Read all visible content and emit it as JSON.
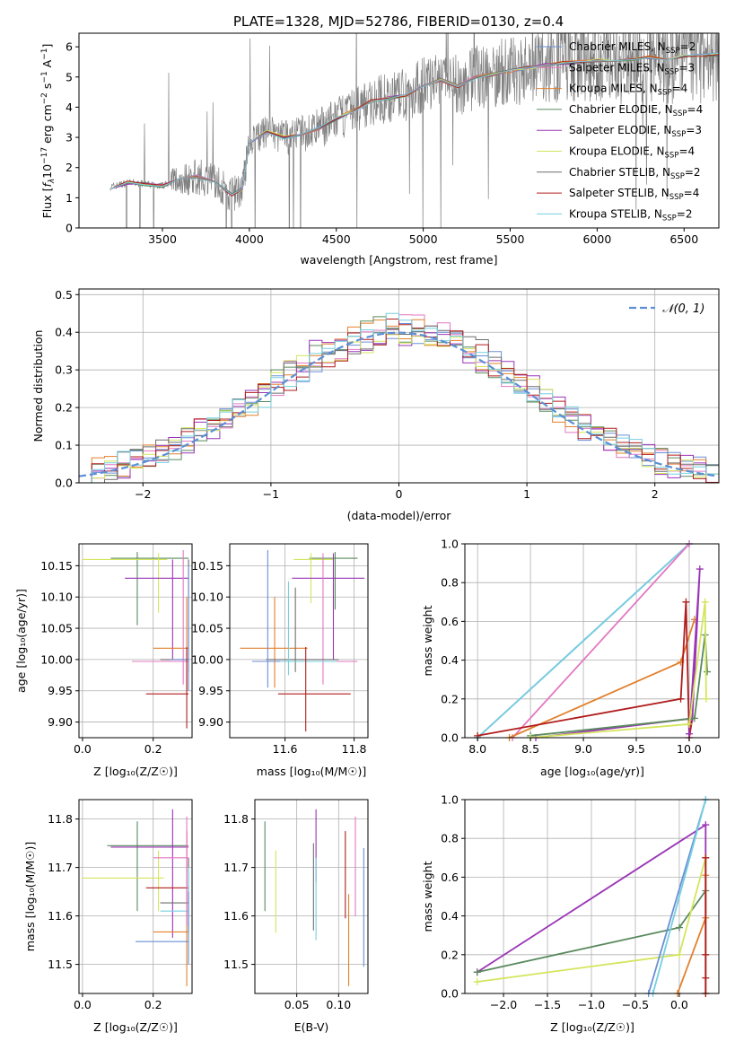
{
  "figure_title": "PLATE=1328, MJD=52786, FIBERID=0130, z=0.4",
  "colors": {
    "chabrier_miles": "#6a8fd6",
    "salpeter_miles": "#e377c2",
    "kroupa_miles": "#e2802d",
    "chabrier_elodie": "#5a8a5e",
    "salpeter_elodie": "#9a35b5",
    "kroupa_elodie": "#d4e55c",
    "chabrier_stelib": "#6e6e6e",
    "salpeter_stelib": "#b01c1c",
    "kroupa_stelib": "#76cfe0",
    "spectrum": "#808080",
    "normal_curve": "#5b8fd6"
  },
  "chart_data": [
    {
      "id": "spectrum",
      "type": "line",
      "xlabel": "wavelength [Angstrom, rest frame]",
      "ylabel": "Flux [f_λ10^-17 erg cm^-2 s^-1 A^-1]",
      "xlim": [
        3020,
        6700
      ],
      "ylim": [
        0,
        6.45
      ],
      "xticks": [
        3500,
        4000,
        4500,
        5000,
        5500,
        6000,
        6500
      ],
      "yticks": [
        0,
        1,
        2,
        3,
        4,
        5,
        6
      ],
      "grid": false,
      "legend_position": "top-right",
      "legend": [
        {
          "base": "Chabrier MILES, N",
          "sub": "SSP",
          "tail": "=2",
          "color_key": "chabrier_miles"
        },
        {
          "base": "Salpeter MILES, N",
          "sub": "SSP",
          "tail": "=3",
          "color_key": "salpeter_miles"
        },
        {
          "base": "Kroupa MILES, N",
          "sub": "SSP",
          "tail": "=4",
          "color_key": "kroupa_miles"
        },
        {
          "base": "Chabrier ELODIE, N",
          "sub": "SSP",
          "tail": "=4",
          "color_key": "chabrier_elodie"
        },
        {
          "base": "Salpeter ELODIE, N",
          "sub": "SSP",
          "tail": "=3",
          "color_key": "salpeter_elodie"
        },
        {
          "base": "Kroupa ELODIE, N",
          "sub": "SSP",
          "tail": "=4",
          "color_key": "kroupa_elodie"
        },
        {
          "base": "Chabrier STELIB, N",
          "sub": "SSP",
          "tail": "=2",
          "color_key": "chabrier_stelib"
        },
        {
          "base": "Salpeter STELIB, N",
          "sub": "SSP",
          "tail": "=4",
          "color_key": "salpeter_stelib"
        },
        {
          "base": "Kroupa STELIB, N",
          "sub": "SSP",
          "tail": "=2",
          "color_key": "kroupa_stelib"
        }
      ],
      "model_continuum": [
        [
          3200,
          1.35
        ],
        [
          3300,
          1.5
        ],
        [
          3400,
          1.45
        ],
        [
          3500,
          1.4
        ],
        [
          3600,
          1.6
        ],
        [
          3700,
          1.7
        ],
        [
          3800,
          1.55
        ],
        [
          3900,
          1.1
        ],
        [
          3960,
          1.3
        ],
        [
          4000,
          2.8
        ],
        [
          4100,
          3.2
        ],
        [
          4200,
          3.0
        ],
        [
          4300,
          3.1
        ],
        [
          4400,
          3.3
        ],
        [
          4500,
          3.6
        ],
        [
          4600,
          3.9
        ],
        [
          4700,
          4.2
        ],
        [
          4800,
          4.3
        ],
        [
          4900,
          4.4
        ],
        [
          5000,
          4.7
        ],
        [
          5100,
          4.9
        ],
        [
          5200,
          4.7
        ],
        [
          5300,
          5.0
        ],
        [
          5400,
          5.1
        ],
        [
          5500,
          5.2
        ],
        [
          5600,
          5.3
        ],
        [
          5700,
          5.4
        ],
        [
          5800,
          5.45
        ],
        [
          5900,
          5.5
        ],
        [
          6000,
          5.55
        ],
        [
          6100,
          5.5
        ],
        [
          6200,
          5.6
        ],
        [
          6300,
          5.65
        ],
        [
          6400,
          5.6
        ],
        [
          6500,
          5.7
        ],
        [
          6600,
          5.7
        ],
        [
          6700,
          5.75
        ]
      ]
    },
    {
      "id": "residuals",
      "type": "histogram",
      "xlabel": "(data-model)/error",
      "ylabel": "Normed distribution",
      "xlim": [
        -2.5,
        2.5
      ],
      "ylim": [
        0,
        0.515
      ],
      "xticks": [
        -2,
        -1,
        0,
        1,
        2
      ],
      "yticks": [
        0.0,
        0.1,
        0.2,
        0.3,
        0.4,
        0.5
      ],
      "grid": true,
      "legend_position": "top-right",
      "legend_label": "𝒩(0, 1)"
    },
    {
      "id": "age_vs_Z",
      "type": "errorbar",
      "xlabel": "Z [log₁₀(Z/Z☉)]",
      "ylabel": "age [log₁₀(age/yr)]",
      "xlim": [
        -0.01,
        0.31
      ],
      "ylim": [
        9.875,
        10.185
      ],
      "xticks": [
        0.0,
        0.2
      ],
      "yticks": [
        9.9,
        9.95,
        10.0,
        10.05,
        10.1,
        10.15
      ],
      "grid": true,
      "points": [
        {
          "color_key": "chabrier_elodie",
          "x": 0.155,
          "xerr": [
            0.08,
            0.3
          ],
          "y": 10.162,
          "yerr": [
            10.055,
            10.172
          ]
        },
        {
          "color_key": "kroupa_elodie",
          "x": 0.215,
          "xerr": [
            0.0,
            0.24
          ],
          "y": 10.16,
          "yerr": [
            10.075,
            10.17
          ]
        },
        {
          "color_key": "salpeter_elodie",
          "x": 0.255,
          "xerr": [
            0.12,
            0.3
          ],
          "y": 10.13,
          "yerr": [
            10.0,
            10.16
          ]
        },
        {
          "color_key": "kroupa_miles",
          "x": 0.295,
          "xerr": [
            0.2,
            0.3
          ],
          "y": 10.018,
          "yerr": [
            9.95,
            10.1
          ]
        },
        {
          "color_key": "salpeter_miles",
          "x": 0.285,
          "xerr": [
            0.14,
            0.3
          ],
          "y": 9.997,
          "yerr": [
            9.96,
            10.175
          ]
        },
        {
          "color_key": "chabrier_stelib",
          "x": 0.3,
          "xerr": [
            0.22,
            0.3
          ],
          "y": 10.0,
          "yerr": [
            9.98,
            10.16
          ]
        },
        {
          "color_key": "chabrier_miles",
          "x": 0.3,
          "xerr": [
            0.25,
            0.3
          ],
          "y": 10.0,
          "yerr": [
            9.95,
            10.15
          ]
        },
        {
          "color_key": "salpeter_stelib",
          "x": 0.295,
          "xerr": [
            0.18,
            0.3
          ],
          "y": 9.945,
          "yerr": [
            9.89,
            10.02
          ]
        }
      ]
    },
    {
      "id": "age_vs_mass",
      "type": "errorbar",
      "xlabel": "mass [log₁₀(M/M☉)]",
      "ylabel": "",
      "xlim": [
        11.44,
        11.84
      ],
      "ylim": [
        9.875,
        10.185
      ],
      "xticks": [
        11.6,
        11.8
      ],
      "yticks": [
        9.9,
        9.95,
        10.0,
        10.05,
        10.1,
        10.15
      ],
      "grid": true,
      "points": [
        {
          "color_key": "chabrier_elodie",
          "x": 11.745,
          "xerr": [
            11.67,
            11.81
          ],
          "y": 10.162,
          "yerr": [
            10.08,
            10.172
          ]
        },
        {
          "color_key": "kroupa_elodie",
          "x": 11.675,
          "xerr": [
            11.625,
            11.74
          ],
          "y": 10.16,
          "yerr": [
            10.09,
            10.17
          ]
        },
        {
          "color_key": "salpeter_elodie",
          "x": 11.74,
          "xerr": [
            11.62,
            11.83
          ],
          "y": 10.13,
          "yerr": [
            10.0,
            10.17
          ]
        },
        {
          "color_key": "kroupa_miles",
          "x": 11.57,
          "xerr": [
            11.47,
            11.665
          ],
          "y": 10.018,
          "yerr": [
            9.955,
            10.1
          ]
        },
        {
          "color_key": "salpeter_miles",
          "x": 11.71,
          "xerr": [
            11.59,
            11.81
          ],
          "y": 9.997,
          "yerr": [
            9.96,
            10.17
          ]
        },
        {
          "color_key": "chabrier_stelib",
          "x": 11.63,
          "xerr": [
            11.545,
            11.755
          ],
          "y": 10.0,
          "yerr": [
            9.98,
            10.115
          ]
        },
        {
          "color_key": "chabrier_miles",
          "x": 11.55,
          "xerr": [
            11.505,
            11.73
          ],
          "y": 9.997,
          "yerr": [
            9.955,
            10.175
          ]
        },
        {
          "color_key": "kroupa_stelib",
          "x": 11.61,
          "xerr": [
            11.585,
            11.75
          ],
          "y": 9.997,
          "yerr": [
            9.975,
            10.125
          ]
        },
        {
          "color_key": "salpeter_stelib",
          "x": 11.66,
          "xerr": [
            11.58,
            11.79
          ],
          "y": 9.945,
          "yerr": [
            9.885,
            10.02
          ]
        }
      ]
    },
    {
      "id": "mass_weight_vs_age",
      "type": "line",
      "xlabel": "age [log₁₀(age/yr)]",
      "ylabel": "mass weight",
      "xlim": [
        7.88,
        10.28
      ],
      "ylim": [
        0,
        1.0
      ],
      "xticks": [
        8.0,
        8.5,
        9.0,
        9.5,
        10.0
      ],
      "yticks": [
        0.0,
        0.2,
        0.4,
        0.6,
        0.8,
        1.0
      ],
      "grid": true,
      "series": [
        {
          "color_key": "chabrier_miles",
          "x": [
            8.0,
            10.0
          ],
          "y": [
            0.0,
            1.0
          ]
        },
        {
          "color_key": "kroupa_stelib",
          "x": [
            8.0,
            10.0
          ],
          "y": [
            0.0,
            1.0
          ]
        },
        {
          "color_key": "salpeter_miles",
          "x": [
            8.33,
            10.0
          ],
          "y": [
            0.0,
            1.0
          ]
        },
        {
          "color_key": "kroupa_miles",
          "x": [
            8.3,
            9.92,
            10.05
          ],
          "y": [
            0.0,
            0.39,
            0.61
          ]
        },
        {
          "color_key": "salpeter_stelib",
          "x": [
            8.0,
            9.92,
            9.97,
            10.0,
            10.03
          ],
          "y": [
            0.01,
            0.2,
            0.7,
            0.0,
            0.1
          ]
        },
        {
          "color_key": "salpeter_elodie",
          "x": [
            8.55,
            10.03,
            10.1,
            10.0
          ],
          "y": [
            0.0,
            0.1,
            0.87,
            0.02
          ]
        },
        {
          "color_key": "chabrier_elodie",
          "x": [
            8.5,
            10.05,
            10.15,
            10.17
          ],
          "y": [
            0.01,
            0.1,
            0.53,
            0.34
          ]
        },
        {
          "color_key": "kroupa_elodie",
          "x": [
            8.5,
            10.0,
            10.15,
            10.16
          ],
          "y": [
            0.0,
            0.07,
            0.7,
            0.2
          ]
        }
      ]
    },
    {
      "id": "mass_vs_Z",
      "type": "errorbar",
      "xlabel": "Z [log₁₀(Z/Z☉)]",
      "ylabel": "mass [log₁₀(M/M☉)]",
      "xlim": [
        -0.01,
        0.31
      ],
      "ylim": [
        11.44,
        11.84
      ],
      "xticks": [
        0.0,
        0.2
      ],
      "yticks": [
        11.5,
        11.6,
        11.7,
        11.8
      ],
      "grid": true,
      "points": [
        {
          "color_key": "chabrier_elodie",
          "x": 0.155,
          "xerr": [
            0.07,
            0.3
          ],
          "y": 11.745,
          "yerr": [
            11.61,
            11.795
          ]
        },
        {
          "color_key": "salpeter_elodie",
          "x": 0.255,
          "xerr": [
            0.08,
            0.3
          ],
          "y": 11.742,
          "yerr": [
            11.555,
            11.82
          ]
        },
        {
          "color_key": "kroupa_elodie",
          "x": 0.215,
          "xerr": [
            0.0,
            0.23
          ],
          "y": 11.678,
          "yerr": [
            11.61,
            11.735
          ]
        },
        {
          "color_key": "salpeter_stelib",
          "x": 0.295,
          "xerr": [
            0.18,
            0.3
          ],
          "y": 11.658,
          "yerr": [
            11.58,
            11.775
          ]
        },
        {
          "color_key": "chabrier_stelib",
          "x": 0.3,
          "xerr": [
            0.22,
            0.3
          ],
          "y": 11.627,
          "yerr": [
            11.57,
            11.72
          ]
        },
        {
          "color_key": "kroupa_stelib",
          "x": 0.3,
          "xerr": [
            0.22,
            0.3
          ],
          "y": 11.61,
          "yerr": [
            11.56,
            11.7
          ]
        },
        {
          "color_key": "kroupa_miles",
          "x": 0.295,
          "xerr": [
            0.2,
            0.3
          ],
          "y": 11.567,
          "yerr": [
            11.455,
            11.645
          ]
        },
        {
          "color_key": "chabrier_miles",
          "x": 0.3,
          "xerr": [
            0.15,
            0.3
          ],
          "y": 11.547,
          "yerr": [
            11.5,
            11.65
          ]
        },
        {
          "color_key": "salpeter_miles",
          "x": 0.295,
          "xerr": [
            0.2,
            0.3
          ],
          "y": 11.72,
          "yerr": [
            11.58,
            11.805
          ]
        }
      ]
    },
    {
      "id": "mass_vs_EBV",
      "type": "errorbar",
      "xlabel": "E(B-V)",
      "ylabel": "",
      "xlim": [
        0.0,
        0.135
      ],
      "ylim": [
        11.44,
        11.84
      ],
      "xticks": [
        0.05,
        0.1
      ],
      "yticks": [
        11.5,
        11.6,
        11.7,
        11.8
      ],
      "grid": true,
      "points": [
        {
          "color_key": "chabrier_elodie",
          "x": 0.012,
          "yerr": [
            11.61,
            11.795
          ]
        },
        {
          "color_key": "kroupa_elodie",
          "x": 0.025,
          "yerr": [
            11.565,
            11.735
          ]
        },
        {
          "color_key": "chabrier_stelib",
          "x": 0.07,
          "yerr": [
            11.57,
            11.75
          ]
        },
        {
          "color_key": "salpeter_elodie",
          "x": 0.073,
          "yerr": [
            11.67,
            11.82
          ]
        },
        {
          "color_key": "kroupa_stelib",
          "x": 0.073,
          "yerr": [
            11.55,
            11.72
          ]
        },
        {
          "color_key": "salpeter_stelib",
          "x": 0.108,
          "yerr": [
            11.595,
            11.775
          ]
        },
        {
          "color_key": "kroupa_miles",
          "x": 0.112,
          "yerr": [
            11.455,
            11.645
          ]
        },
        {
          "color_key": "salpeter_miles",
          "x": 0.12,
          "yerr": [
            11.6,
            11.805
          ]
        },
        {
          "color_key": "chabrier_miles",
          "x": 0.13,
          "yerr": [
            11.495,
            11.74
          ]
        }
      ]
    },
    {
      "id": "mass_weight_vs_Z",
      "type": "line",
      "xlabel": "Z [log₁₀(Z/Z☉)]",
      "ylabel": "mass weight",
      "xlim": [
        -2.44,
        0.45
      ],
      "ylim": [
        0,
        1.0
      ],
      "xticks": [
        -2.0,
        -1.5,
        -1.0,
        -0.5,
        0.0
      ],
      "yticks": [
        0.0,
        0.2,
        0.4,
        0.6,
        0.8,
        1.0
      ],
      "grid": true,
      "series": [
        {
          "color_key": "salpeter_elodie",
          "x": [
            -2.3,
            0.3,
            0.3
          ],
          "y": [
            0.11,
            0.87,
            0.0
          ]
        },
        {
          "color_key": "chabrier_elodie",
          "x": [
            -2.3,
            0.0,
            0.3
          ],
          "y": [
            0.11,
            0.34,
            0.53
          ]
        },
        {
          "color_key": "kroupa_elodie",
          "x": [
            -2.3,
            0.0,
            0.3,
            0.3
          ],
          "y": [
            0.06,
            0.2,
            0.7,
            0.0
          ]
        },
        {
          "color_key": "chabrier_miles",
          "x": [
            -0.35,
            0.3
          ],
          "y": [
            0.0,
            1.0
          ]
        },
        {
          "color_key": "kroupa_stelib",
          "x": [
            -0.3,
            0.3
          ],
          "y": [
            0.0,
            1.0
          ]
        },
        {
          "color_key": "kroupa_miles",
          "x": [
            -0.02,
            0.3,
            0.3
          ],
          "y": [
            0.0,
            0.39,
            0.61
          ]
        },
        {
          "color_key": "salpeter_stelib",
          "x": [
            0.3,
            0.3,
            0.3,
            0.3
          ],
          "y": [
            0.08,
            0.2,
            0.7,
            0.0
          ]
        }
      ]
    }
  ]
}
